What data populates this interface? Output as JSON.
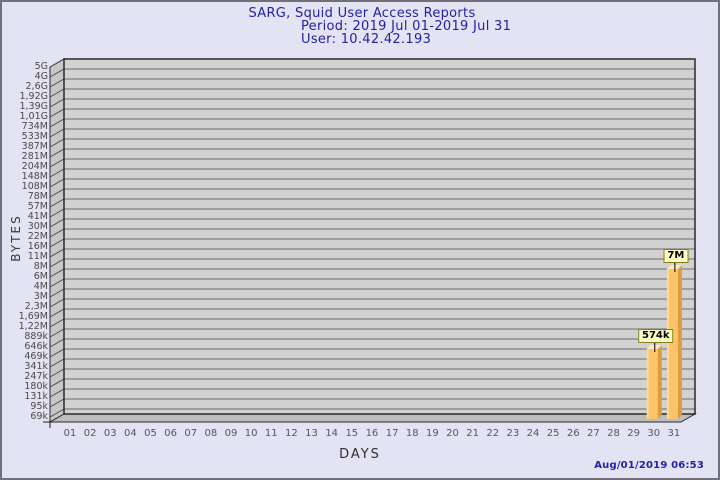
{
  "title": {
    "line1": "SARG, Squid User Access Reports",
    "line2": "Period: 2019 Jul 01-2019 Jul 31",
    "line3": "User: 10.42.42.193"
  },
  "footer": {
    "timestamp": "Aug/01/2019 06:53"
  },
  "chart_data": {
    "type": "bar",
    "title": "SARG, Squid User Access Reports",
    "subtitle": "Period: 2019 Jul 01-2019 Jul 31 | User: 10.42.42.193",
    "xlabel": "DAYS",
    "ylabel": "BYTES",
    "y_scale": "logarithmic-discrete",
    "grid": true,
    "style": "3d-bars",
    "y_tick_labels": [
      "5G",
      "4G",
      "2,6G",
      "1,92G",
      "1,39G",
      "1,01G",
      "734M",
      "533M",
      "387M",
      "281M",
      "204M",
      "148M",
      "108M",
      "78M",
      "57M",
      "41M",
      "30M",
      "22M",
      "16M",
      "11M",
      "8M",
      "6M",
      "4M",
      "3M",
      "2,3M",
      "1,69M",
      "1,22M",
      "889k",
      "646k",
      "469k",
      "341k",
      "247k",
      "180k",
      "131k",
      "95k",
      "69k"
    ],
    "categories": [
      "01",
      "02",
      "03",
      "04",
      "05",
      "06",
      "07",
      "08",
      "09",
      "10",
      "11",
      "12",
      "13",
      "14",
      "15",
      "16",
      "17",
      "18",
      "19",
      "20",
      "21",
      "22",
      "23",
      "24",
      "25",
      "26",
      "27",
      "28",
      "29",
      "30",
      "31"
    ],
    "values": [
      0,
      0,
      0,
      0,
      0,
      0,
      0,
      0,
      0,
      0,
      0,
      0,
      0,
      0,
      0,
      0,
      0,
      0,
      0,
      0,
      0,
      0,
      0,
      0,
      0,
      0,
      0,
      0,
      0,
      574000,
      7000000
    ],
    "bars": [
      {
        "day": "30",
        "value_label": "574k",
        "value_bytes": 574000
      },
      {
        "day": "31",
        "value_label": "7M",
        "value_bytes": 7000000
      }
    ],
    "colors": {
      "page_bg": "#E3E3F3",
      "frame_border": "#70707A",
      "plot_bg": "#D2D2D2",
      "wall": "#C7C7C7",
      "floor": "#BDBDBD",
      "grid_line": "#6B6B6B",
      "plot_outline": "#2A2A2A",
      "title_text": "#2222AA",
      "bar_front": "#FCC469",
      "bar_highlight": "#FFDA92",
      "bar_side": "#DE9B3B",
      "bar_top": "#FFE9B8",
      "label_box_bg": "#FFFFC6",
      "label_box_border": "#857C1E"
    }
  }
}
